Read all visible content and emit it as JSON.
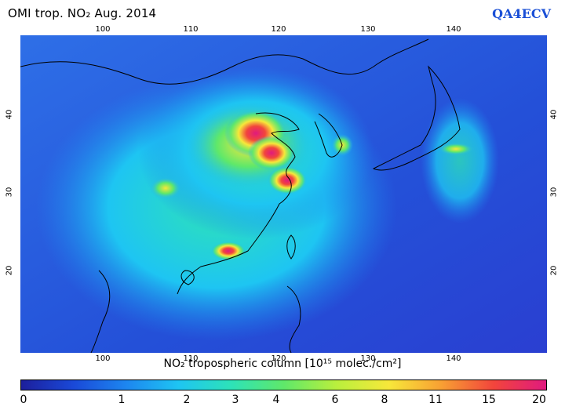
{
  "header": {
    "title": "OMI trop. NO₂  Aug. 2014",
    "brand": "QA4ECV"
  },
  "axes": {
    "lon_ticks": [
      "100",
      "110",
      "120",
      "130",
      "140"
    ],
    "lat_ticks": [
      "20",
      "30",
      "40"
    ],
    "lon_range": [
      94,
      148
    ],
    "lat_range": [
      12,
      48
    ]
  },
  "caption": "NO₂ tropospheric column [10¹⁵ molec./cm²]",
  "colorbar": {
    "labels": [
      "0",
      "1",
      "2",
      "3",
      "4",
      "6",
      "8",
      "11",
      "15",
      "20"
    ],
    "colors": [
      "#1c1f9c",
      "#1a49d8",
      "#1d86f0",
      "#1ec5f2",
      "#2de2b8",
      "#5fe86a",
      "#b9ef3d",
      "#f7e83a",
      "#f8a033",
      "#f2453c",
      "#e01a7e"
    ]
  },
  "colors": {
    "ocean": "#2a3fd1",
    "background_low": "#2e6fe7",
    "mid": "#20b6f2",
    "coast": "#000000",
    "brand": "#1a4fd6"
  }
}
